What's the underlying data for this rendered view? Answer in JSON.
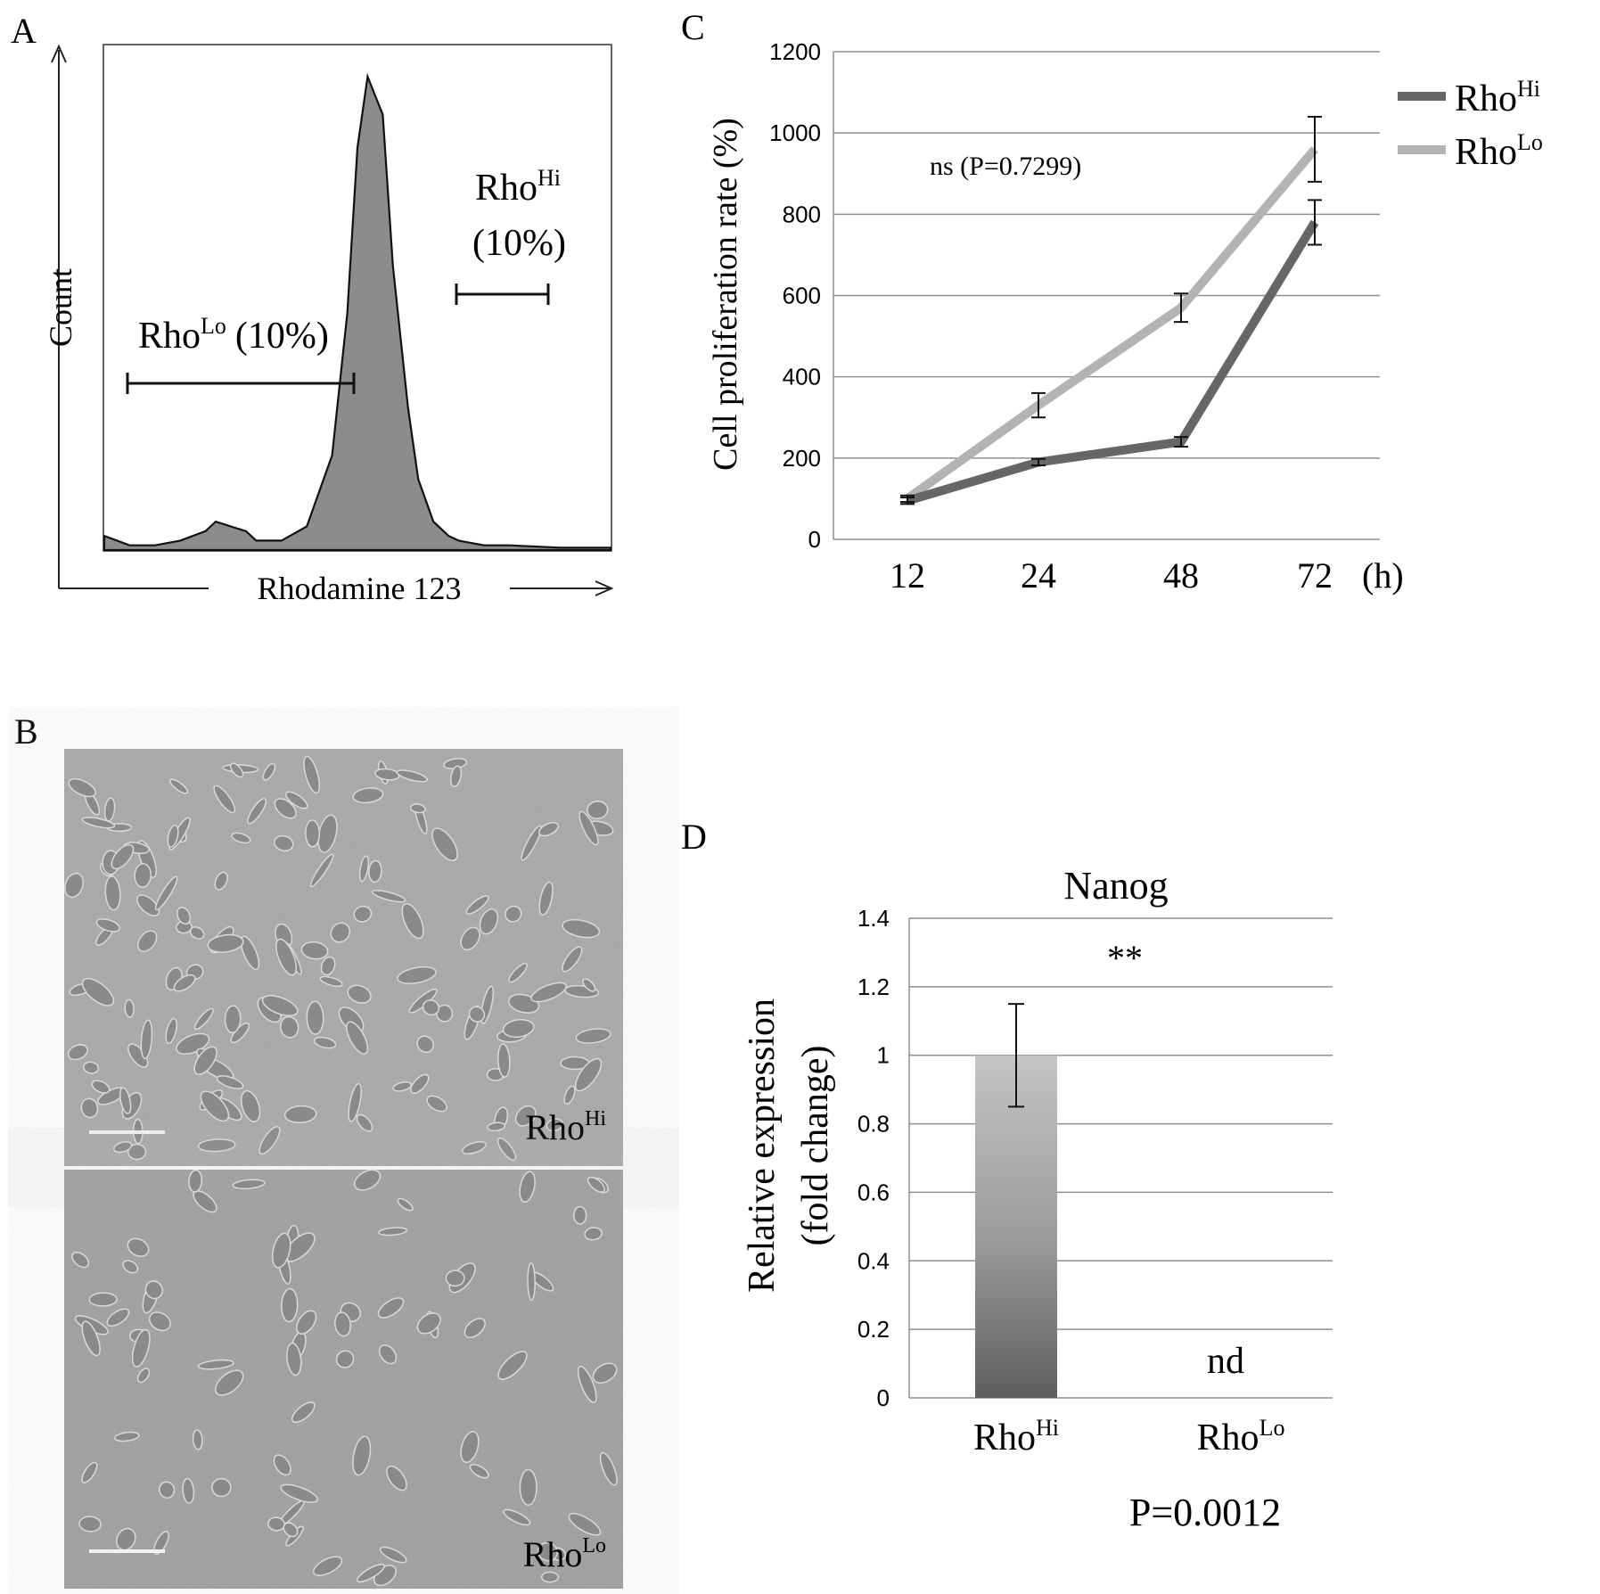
{
  "panels": {
    "a": {
      "letter": "A",
      "y_axis_label": "Count",
      "x_axis_label": "Rhodamine 123",
      "gate_lo_text": "Rho",
      "gate_lo_sup": "Lo",
      "gate_lo_pct": "(10%)",
      "gate_hi_text": "Rho",
      "gate_hi_sup": "Hi",
      "gate_hi_pct": "(10%)"
    },
    "b": {
      "letter": "B",
      "top_label_text": "Rho",
      "top_label_sup": "Hi",
      "bottom_label_text": "Rho",
      "bottom_label_sup": "Lo"
    },
    "c": {
      "letter": "C",
      "ylabel": "Cell proliferation rate  (%)",
      "x_unit": "(h)",
      "annotation": "ns (P=0.7299)",
      "legend": [
        {
          "text": "Rho",
          "sup": "Hi",
          "color": "#666666"
        },
        {
          "text": "Rho",
          "sup": "Lo",
          "color": "#b3b3b3"
        }
      ]
    },
    "d": {
      "letter": "D",
      "title": "Nanog",
      "ylabel_line1": "Relative expression",
      "ylabel_line2": "(fold change)",
      "significance": "**",
      "nd_label": "nd",
      "p_value": "P=0.0012",
      "categories": [
        {
          "text": "Rho",
          "sup": "Hi"
        },
        {
          "text": "Rho",
          "sup": "Lo"
        }
      ]
    }
  },
  "chart_data": [
    {
      "panel": "A",
      "type": "area",
      "description_axis": "histogram",
      "xlabel": "Rhodamine 123",
      "ylabel": "Count",
      "x": [
        0,
        0.05,
        0.1,
        0.15,
        0.2,
        0.22,
        0.25,
        0.28,
        0.3,
        0.35,
        0.4,
        0.45,
        0.48,
        0.5,
        0.52,
        0.55,
        0.57,
        0.6,
        0.62,
        0.65,
        0.68,
        0.7,
        0.75,
        0.8,
        0.9,
        1.0
      ],
      "y": [
        0.03,
        0.01,
        0.01,
        0.02,
        0.04,
        0.06,
        0.05,
        0.04,
        0.02,
        0.02,
        0.05,
        0.2,
        0.5,
        0.85,
        1.0,
        0.92,
        0.6,
        0.3,
        0.15,
        0.06,
        0.03,
        0.02,
        0.01,
        0.01,
        0.005,
        0.005
      ],
      "color": "#8c8c8c"
    },
    {
      "panel": "C",
      "type": "line",
      "categories": [
        "12",
        "24",
        "48",
        "72"
      ],
      "ylim": [
        0,
        1200
      ],
      "yticks": [
        "0",
        "200",
        "400",
        "600",
        "800",
        "1000",
        "1200"
      ],
      "ylabel": "Cell proliferation rate  (%)",
      "grid": true,
      "legend_position": "right",
      "series": [
        {
          "name": "RhoHi",
          "values": [
            95,
            190,
            240,
            780
          ],
          "errors": [
            8,
            8,
            12,
            55
          ],
          "color": "#666666"
        },
        {
          "name": "RhoLo",
          "values": [
            100,
            330,
            570,
            960
          ],
          "errors": [
            8,
            30,
            35,
            80
          ],
          "color": "#b3b3b3"
        }
      ]
    },
    {
      "panel": "D",
      "type": "bar",
      "title": "Nanog",
      "categories": [
        "RhoHi",
        "RhoLo"
      ],
      "values": [
        1.0,
        0
      ],
      "errors": [
        0.15,
        0
      ],
      "ylim": [
        0,
        1.4
      ],
      "yticks": [
        "0",
        "0.2",
        "0.4",
        "0.6",
        "0.8",
        "1",
        "1.2",
        "1.4"
      ],
      "grid": true
    }
  ]
}
